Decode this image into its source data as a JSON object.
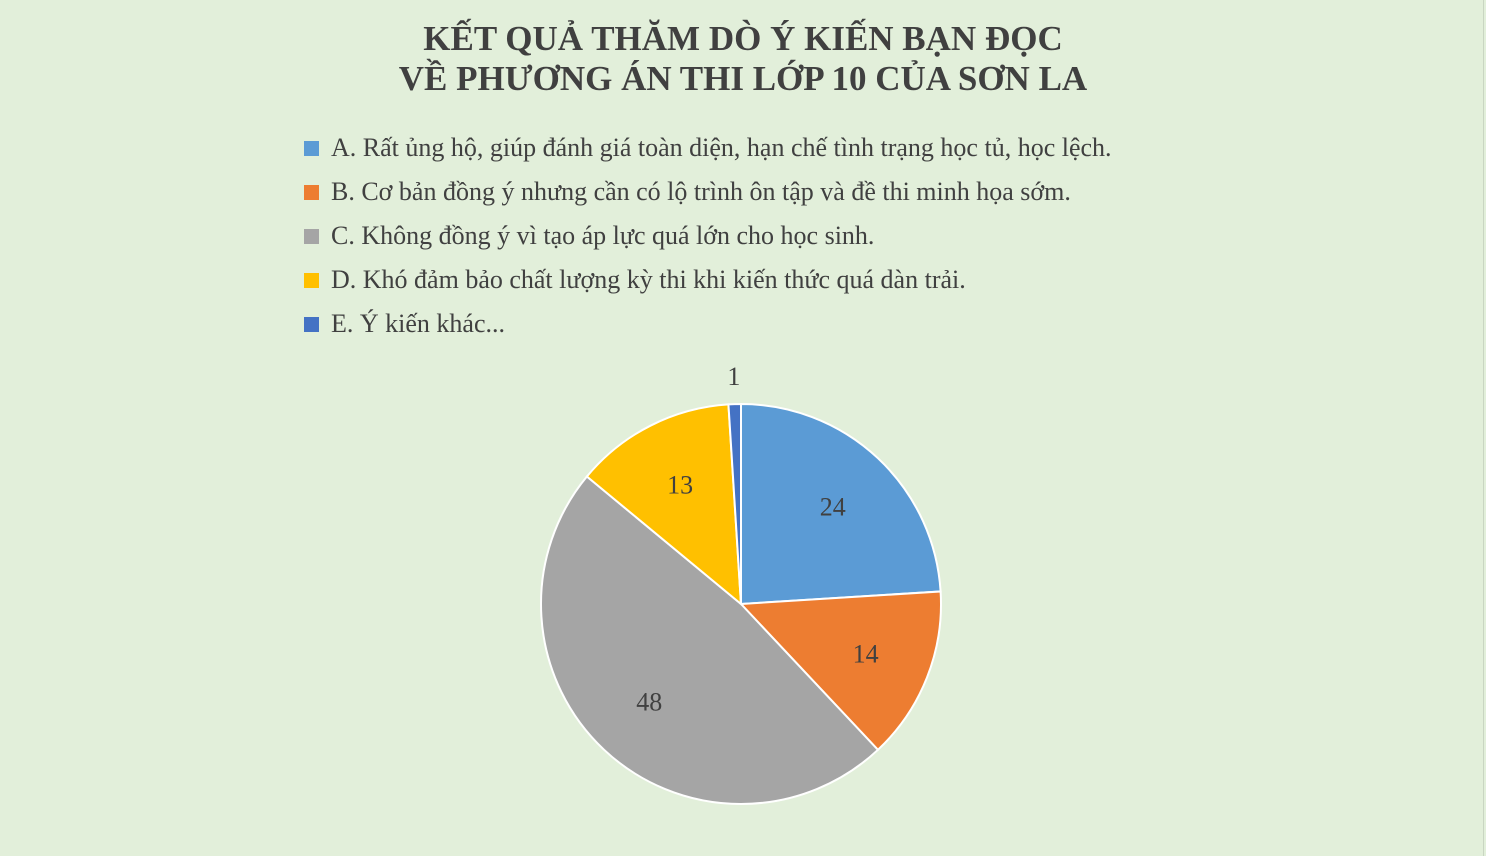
{
  "chart_data": {
    "type": "pie",
    "title": [
      "KẾT QUẢ THĂM DÒ Ý KIẾN BẠN ĐỌC",
      "VỀ PHƯƠNG ÁN THI LỚP 10 CỦA SƠN LA"
    ],
    "categories": [
      "A. Rất ủng hộ, giúp đánh giá toàn diện, hạn chế tình trạng học tủ, học lệch.",
      "B. Cơ bản đồng ý nhưng cần có lộ trình ôn tập và đề thi minh họa sớm.",
      "C. Không đồng ý vì tạo áp lực quá lớn cho học sinh.",
      "D. Khó đảm bảo chất lượng kỳ thi khi kiến thức quá dàn trải.",
      "E. Ý kiến khác..."
    ],
    "values": [
      24,
      14,
      48,
      13,
      1
    ],
    "data_labels": [
      "24",
      "14",
      "48",
      "13",
      "1"
    ],
    "colors": [
      "#5b9bd5",
      "#ed7d31",
      "#a5a5a5",
      "#ffc000",
      "#4472c4"
    ],
    "legend_position": "top",
    "start_angle": "12 o'clock, clockwise"
  }
}
